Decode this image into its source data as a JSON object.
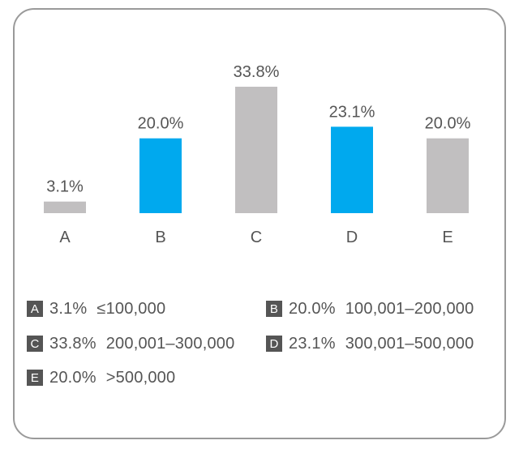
{
  "colors": {
    "gray": "#c1bfc0",
    "blue": "#00a9ee",
    "text": "#555555",
    "badge": "#555555"
  },
  "chart_data": {
    "type": "bar",
    "categories": [
      "A",
      "B",
      "C",
      "D",
      "E"
    ],
    "values": [
      3.1,
      20.0,
      33.8,
      23.1,
      20.0
    ],
    "value_labels": [
      "3.1%",
      "20.0%",
      "33.8%",
      "23.1%",
      "20.0%"
    ],
    "bar_colors": [
      "gray",
      "blue",
      "gray",
      "blue",
      "gray"
    ],
    "ylim": [
      0,
      33.8
    ],
    "grid": false,
    "title": "",
    "xlabel": "",
    "ylabel": ""
  },
  "legend": [
    {
      "key": "A",
      "pct": "3.1%",
      "range": "≤100,000"
    },
    {
      "key": "B",
      "pct": "20.0%",
      "range": "100,001–200,000"
    },
    {
      "key": "C",
      "pct": "33.8%",
      "range": "200,001–300,000"
    },
    {
      "key": "D",
      "pct": "23.1%",
      "range": "300,001–500,000"
    },
    {
      "key": "E",
      "pct": "20.0%",
      "range": ">500,000"
    }
  ]
}
